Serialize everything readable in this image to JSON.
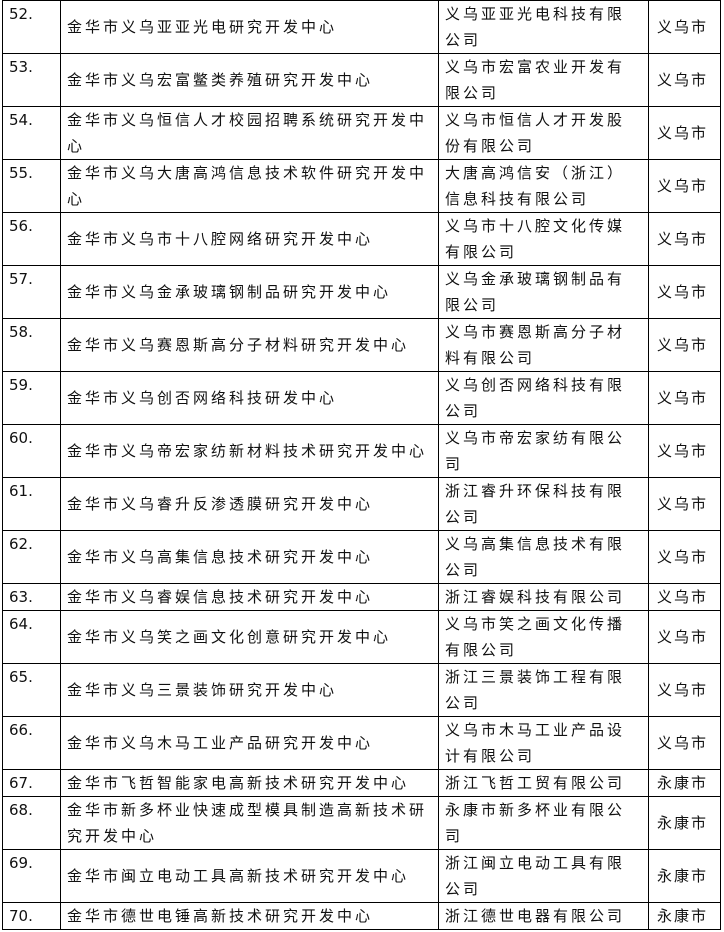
{
  "table": {
    "rows": [
      [
        "52.",
        "金华市义乌亚亚光电研究开发中心",
        "义乌亚亚光电科技有限公司",
        "义乌市"
      ],
      [
        "53.",
        "金华市义乌宏富鳖类养殖研究开发中心",
        "义乌市宏富农业开发有限公司",
        "义乌市"
      ],
      [
        "54.",
        "金华市义乌恒信人才校园招聘系统研究开发中心",
        "义乌市恒信人才开发股份有限公司",
        "义乌市"
      ],
      [
        "55.",
        "金华市义乌大唐高鸿信息技术软件研究开发中心",
        "大唐高鸿信安（浙江）信息科技有限公司",
        "义乌市"
      ],
      [
        "56.",
        "金华市义乌市十八腔网络研究开发中心",
        "义乌市十八腔文化传媒有限公司",
        "义乌市"
      ],
      [
        "57.",
        "金华市义乌金承玻璃钢制品研究开发中心",
        "义乌金承玻璃钢制品有限公司",
        "义乌市"
      ],
      [
        "58.",
        "金华市义乌赛恩斯高分子材料研究开发中心",
        "义乌市赛恩斯高分子材料有限公司",
        "义乌市"
      ],
      [
        "59.",
        "金华市义乌创否网络科技研发中心",
        "义乌创否网络科技有限公司",
        "义乌市"
      ],
      [
        "60.",
        "金华市义乌帝宏家纺新材料技术研究开发中心",
        "义乌市帝宏家纺有限公司",
        "义乌市"
      ],
      [
        "61.",
        "金华市义乌睿升反渗透膜研究开发中心",
        "浙江睿升环保科技有限公司",
        "义乌市"
      ],
      [
        "62.",
        "金华市义乌高集信息技术研究开发中心",
        "义乌高集信息技术有限公司",
        "义乌市"
      ],
      [
        "63.",
        "金华市义乌睿娱信息技术研究开发中心",
        "浙江睿娱科技有限公司",
        "义乌市"
      ],
      [
        "64.",
        "金华市义乌笑之画文化创意研究开发中心",
        "义乌市笑之画文化传播有限公司",
        "义乌市"
      ],
      [
        "65.",
        "金华市义乌三景装饰研究开发中心",
        "浙江三景装饰工程有限公司",
        "义乌市"
      ],
      [
        "66.",
        "金华市义乌木马工业产品研究开发中心",
        "义乌市木马工业产品设计有限公司",
        "义乌市"
      ],
      [
        "67.",
        "金华市飞哲智能家电高新技术研究开发中心",
        "浙江飞哲工贸有限公司",
        "永康市"
      ],
      [
        "68.",
        "金华市新多杯业快速成型模具制造高新技术研究开发中心",
        "永康市新多杯业有限公司",
        "永康市"
      ],
      [
        "69.",
        "金华市闽立电动工具高新技术研究开发中心",
        "浙江闽立电动工具有限公司",
        "永康市"
      ],
      [
        "70.",
        "金华市德世电锤高新技术研究开发中心",
        "浙江德世电器有限公司",
        "永康市"
      ]
    ]
  }
}
